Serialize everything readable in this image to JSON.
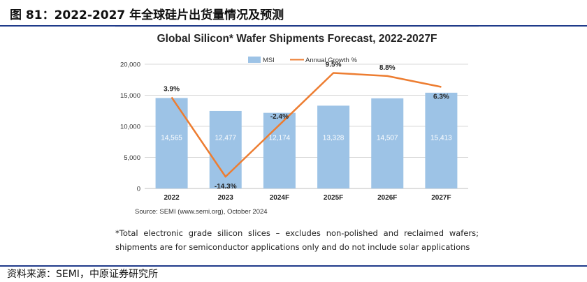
{
  "header": {
    "figure_title": "图 81：2022-2027 年全球硅片出货量情况及预测"
  },
  "footnote": {
    "line1": "*Total electronic grade silicon slices – excludes non-polished and reclaimed wafers;",
    "line2": "shipments are for semiconductor applications only and do not include solar applications"
  },
  "source": "资料来源：SEMI，中原证券研究所",
  "colors": {
    "bar": "#9dc3e6",
    "line": "#ed7d31",
    "grid": "#d9d9d9",
    "rule": "#1f3a8a"
  },
  "chart_data": {
    "type": "bar",
    "title": "Global Silicon* Wafer Shipments Forecast, 2022-2027F",
    "categories": [
      "2022",
      "2023",
      "2024F",
      "2025F",
      "2026F",
      "2027F"
    ],
    "series": [
      {
        "name": "MSI",
        "type": "bar",
        "values": [
          14565,
          12477,
          12174,
          13328,
          14507,
          15413
        ],
        "labels": [
          "14,565",
          "12,477",
          "12,174",
          "13,328",
          "14,507",
          "15,413"
        ]
      },
      {
        "name": "Annual Growth %",
        "type": "line",
        "values": [
          3.9,
          -14.3,
          -2.4,
          9.5,
          8.8,
          6.3
        ],
        "labels": [
          "3.9%",
          "-14.3%",
          "-2.4%",
          "9.5%",
          "8.8%",
          "6.3%"
        ]
      }
    ],
    "ylim": [
      0,
      20000
    ],
    "yticks": [
      0,
      5000,
      10000,
      15000,
      20000
    ],
    "ytick_labels": [
      "0",
      "5,000",
      "10,000",
      "15,000",
      "20,000"
    ],
    "secondary_ylim": [
      -17,
      11.5
    ],
    "xlabel": "",
    "ylabel": "",
    "legend_position": "top-center",
    "source_note": "Source: SEMI (www.semi.org), October 2024"
  }
}
